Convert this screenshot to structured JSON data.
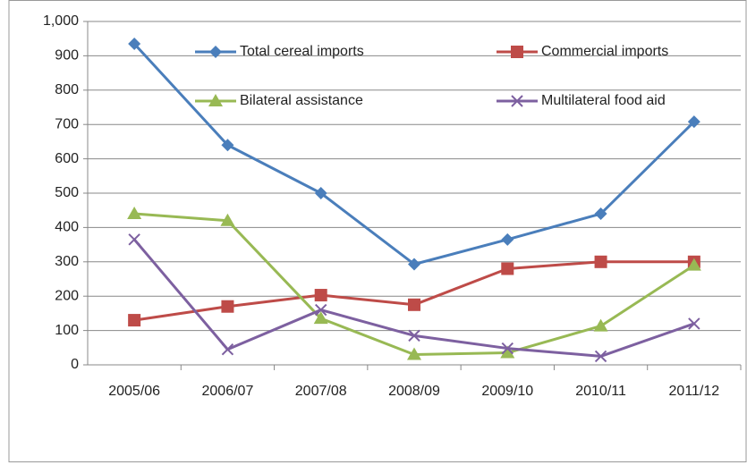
{
  "chart_data": {
    "type": "line",
    "categories": [
      "2005/06",
      "2006/07",
      "2007/08",
      "2008/09",
      "2009/10",
      "2010/11",
      "2011/12"
    ],
    "series": [
      {
        "name": "Total cereal imports",
        "color": "#4a7ebb",
        "marker": "diamond",
        "values": [
          935,
          640,
          500,
          293,
          365,
          440,
          708
        ]
      },
      {
        "name": "Commercial imports",
        "color": "#be4b48",
        "marker": "square",
        "values": [
          130,
          170,
          203,
          175,
          280,
          300,
          300
        ]
      },
      {
        "name": "Bilateral assistance",
        "color": "#98b954",
        "marker": "triangle",
        "values": [
          440,
          420,
          135,
          30,
          35,
          113,
          290
        ]
      },
      {
        "name": "Multilateral food aid",
        "color": "#7d60a0",
        "marker": "x",
        "values": [
          365,
          45,
          160,
          85,
          48,
          25,
          120
        ]
      }
    ],
    "ylim": [
      0,
      1000
    ],
    "yticks": [
      0,
      100,
      200,
      300,
      400,
      500,
      600,
      700,
      800,
      900,
      {
        "value": 1000,
        "label": "1,000"
      }
    ],
    "grid": true
  }
}
